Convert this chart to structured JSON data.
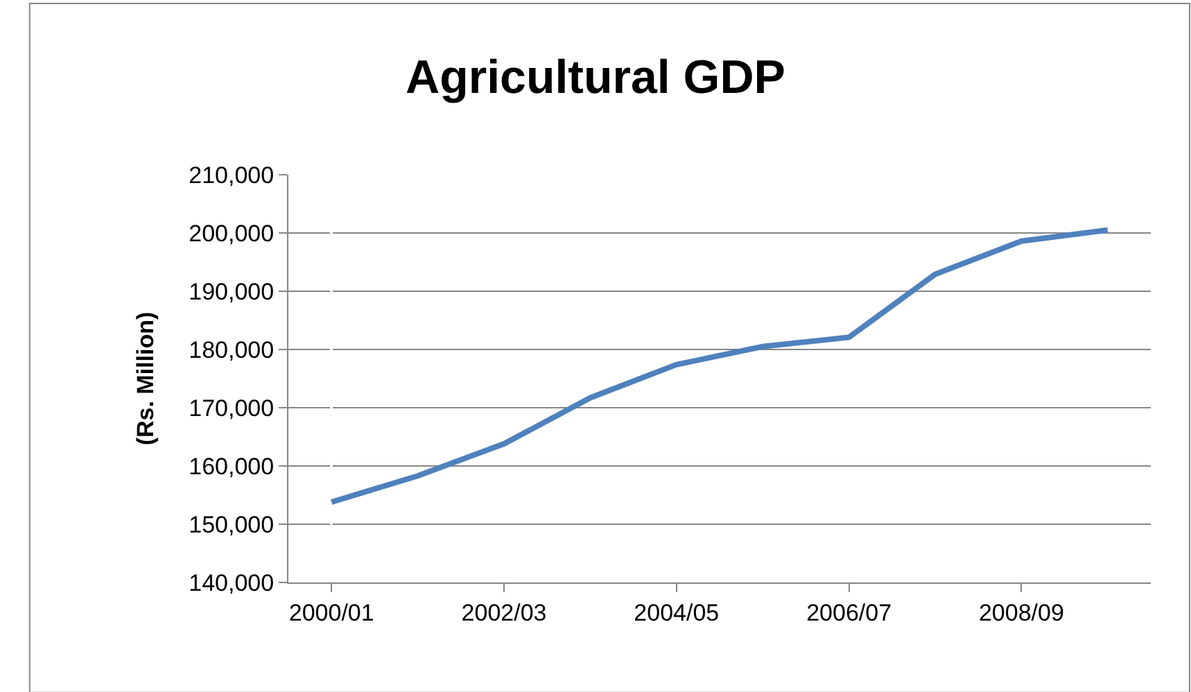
{
  "chart_data": {
    "type": "line",
    "title": "Agricultural GDP",
    "ylabel": "(Rs. Million)",
    "categories": [
      "2000/01",
      null,
      "2002/03",
      null,
      "2004/05",
      null,
      "2006/07",
      null,
      "2008/09",
      null
    ],
    "series": [
      {
        "color": "#4f81bd",
        "values": [
          153800,
          158300,
          163800,
          171700,
          177400,
          180500,
          182100,
          192900,
          198600,
          200500
        ]
      }
    ],
    "ylim": [
      140000,
      210000
    ],
    "yticks": [
      {
        "value": 140000,
        "label": "140,000"
      },
      {
        "value": 150000,
        "label": "150,000"
      },
      {
        "value": 160000,
        "label": "160,000"
      },
      {
        "value": 170000,
        "label": "170,000"
      },
      {
        "value": 180000,
        "label": "180,000"
      },
      {
        "value": 190000,
        "label": "190,000"
      },
      {
        "value": 200000,
        "label": "200,000"
      },
      {
        "value": 210000,
        "label": "210,000"
      }
    ],
    "grid": "y",
    "legend": false,
    "marker": "none",
    "line_style": "solid"
  }
}
